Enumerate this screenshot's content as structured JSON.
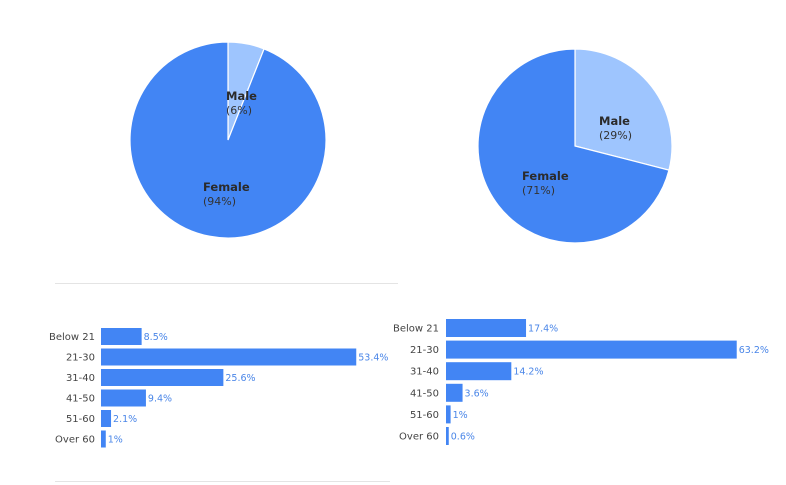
{
  "colors": {
    "primary": "#4285f4",
    "light": "#9ec5fe",
    "value_text": "#4a86e8"
  },
  "chart_data": [
    {
      "type": "pie",
      "slices": [
        {
          "label": "Male",
          "value": 6,
          "pct_label": "(6%)"
        },
        {
          "label": "Female",
          "value": 94,
          "pct_label": "(94%)"
        }
      ]
    },
    {
      "type": "pie",
      "slices": [
        {
          "label": "Male",
          "value": 29,
          "pct_label": "(29%)"
        },
        {
          "label": "Female",
          "value": 71,
          "pct_label": "(71%)"
        }
      ]
    },
    {
      "type": "bar",
      "orientation": "horizontal",
      "categories": [
        "Below 21",
        "21-30",
        "31-40",
        "41-50",
        "51-60",
        "Over 60"
      ],
      "values": [
        8.5,
        53.4,
        25.6,
        9.4,
        2.1,
        1
      ],
      "value_labels": [
        "8.5%",
        "53.4%",
        "25.6%",
        "9.4%",
        "2.1%",
        "1%"
      ]
    },
    {
      "type": "bar",
      "orientation": "horizontal",
      "categories": [
        "Below 21",
        "21-30",
        "31-40",
        "41-50",
        "51-60",
        "Over 60"
      ],
      "values": [
        17.4,
        63.2,
        14.2,
        3.6,
        1,
        0.6
      ],
      "value_labels": [
        "17.4%",
        "63.2%",
        "14.2%",
        "3.6%",
        "1%",
        "0.6%"
      ]
    }
  ]
}
